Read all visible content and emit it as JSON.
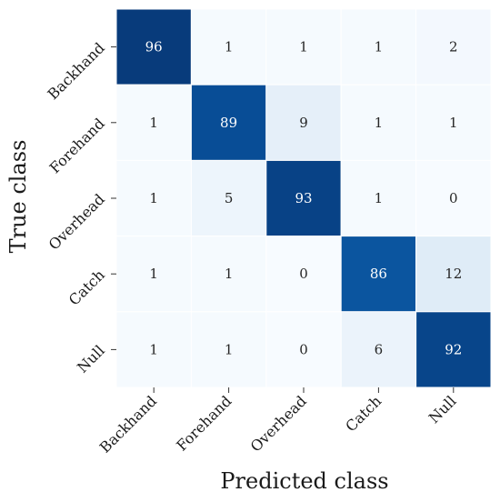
{
  "chart_data": {
    "type": "heatmap",
    "title": "",
    "xlabel": "Predicted class",
    "ylabel": "True class",
    "x_categories": [
      "Backhand",
      "Forehand",
      "Overhead",
      "Catch",
      "Null"
    ],
    "y_categories": [
      "Backhand",
      "Forehand",
      "Overhead",
      "Catch",
      "Null"
    ],
    "values": [
      [
        96,
        1,
        1,
        1,
        2
      ],
      [
        1,
        89,
        9,
        1,
        1
      ],
      [
        1,
        5,
        93,
        1,
        0
      ],
      [
        1,
        1,
        0,
        86,
        12
      ],
      [
        1,
        1,
        0,
        6,
        92
      ]
    ],
    "colormap": "Blues",
    "value_range": [
      0,
      100
    ],
    "colors": {
      "low": "#f7fbff",
      "high": "#08306b",
      "text_dark": "#262626",
      "text_light": "#ffffff"
    },
    "grid": true,
    "legend": "none"
  }
}
